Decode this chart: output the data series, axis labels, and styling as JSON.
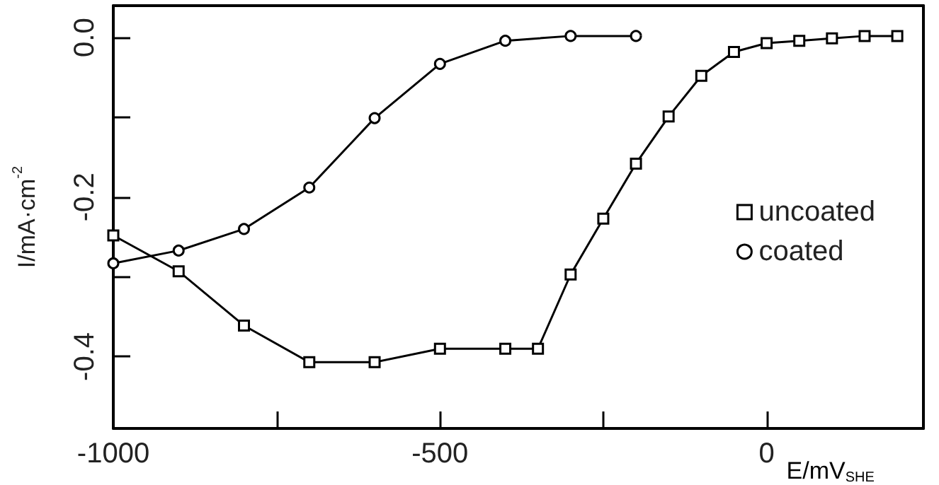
{
  "chart_data": {
    "type": "line",
    "xlabel": "E/mV$_{SHE}$",
    "ylabel": "I/mA·cm$^{-2}$",
    "xlim": [
      -1000,
      240
    ],
    "xticks": [
      -1000,
      {
        "value": -750,
        "label": null
      },
      -500,
      {
        "value": -250,
        "label": null
      },
      0
    ],
    "ylim": [
      -0.49,
      0.04
    ],
    "yticks": [
      {
        "value": -0.4,
        "label": "-0.4"
      },
      {
        "value": -0.3,
        "label": null
      },
      {
        "value": -0.2,
        "label": "-0.2"
      },
      {
        "value": -0.1,
        "label": null
      },
      {
        "value": 0,
        "label": "0.0"
      }
    ],
    "grid": false,
    "legend": "right",
    "line_style": "solid",
    "series": [
      {
        "name": "uncoated",
        "color": "#000000",
        "marker": "square",
        "x": [
          -1000,
          -900,
          -800,
          -700,
          -600,
          -500,
          -400,
          -350,
          -300,
          -250,
          -200,
          -150,
          -100,
          -50,
          0,
          50,
          100,
          150,
          200
        ],
        "values": [
          -0.248,
          -0.293,
          -0.361,
          -0.407,
          -0.407,
          -0.39,
          -0.39,
          -0.39,
          -0.297,
          -0.227,
          -0.158,
          -0.099,
          -0.048,
          -0.018,
          -0.007,
          -0.004,
          -0.001,
          0.002,
          0.002
        ]
      },
      {
        "name": "coated",
        "color": "#000000",
        "marker": "circle",
        "x": [
          -1000,
          -900,
          -800,
          -700,
          -600,
          -500,
          -400,
          -300,
          -200
        ],
        "values": [
          -0.283,
          -0.267,
          -0.24,
          -0.188,
          -0.101,
          -0.033,
          -0.004,
          0.002,
          0.002
        ]
      }
    ]
  }
}
